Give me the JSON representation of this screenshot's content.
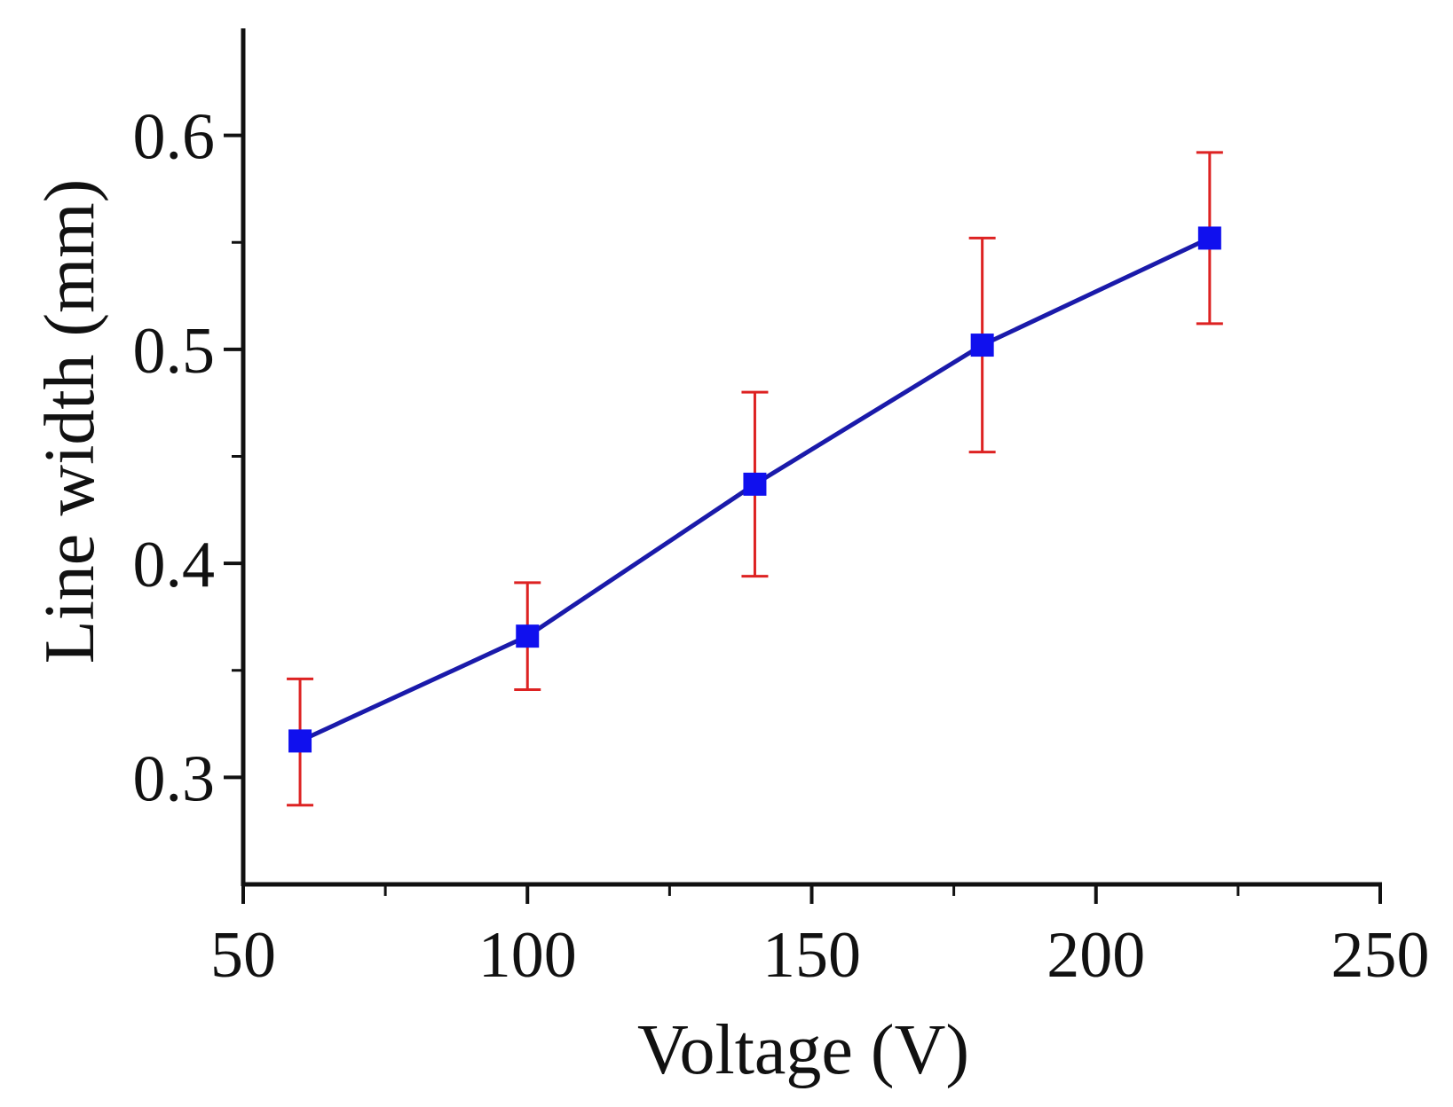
{
  "chart_data": {
    "type": "line",
    "title": "",
    "xlabel": "Voltage (V)",
    "ylabel": "Line width (mm)",
    "xlim": [
      50,
      250
    ],
    "ylim": [
      0.25,
      0.65
    ],
    "x_ticks": [
      50,
      100,
      150,
      200,
      250
    ],
    "x_tick_labels": [
      "50",
      "100",
      "150",
      "200",
      "250"
    ],
    "x_minor_ticks": [
      75,
      125,
      175,
      225
    ],
    "y_ticks": [
      0.3,
      0.4,
      0.5,
      0.6
    ],
    "y_tick_labels": [
      "0.3",
      "0.4",
      "0.5",
      "0.6"
    ],
    "y_minor_ticks": [
      0.35,
      0.45,
      0.55
    ],
    "grid": false,
    "series": [
      {
        "name": "Line width",
        "x": [
          60,
          100,
          140,
          180,
          220
        ],
        "values": [
          0.317,
          0.366,
          0.437,
          0.502,
          0.552
        ],
        "error_upper": [
          0.346,
          0.391,
          0.48,
          0.552,
          0.592
        ],
        "error_lower": [
          0.287,
          0.341,
          0.394,
          0.452,
          0.512
        ]
      }
    ],
    "colors": {
      "line": "#1a1aaa",
      "marker": "#1010ee",
      "error_bar": "#dd2222",
      "axis": "#111111"
    }
  }
}
